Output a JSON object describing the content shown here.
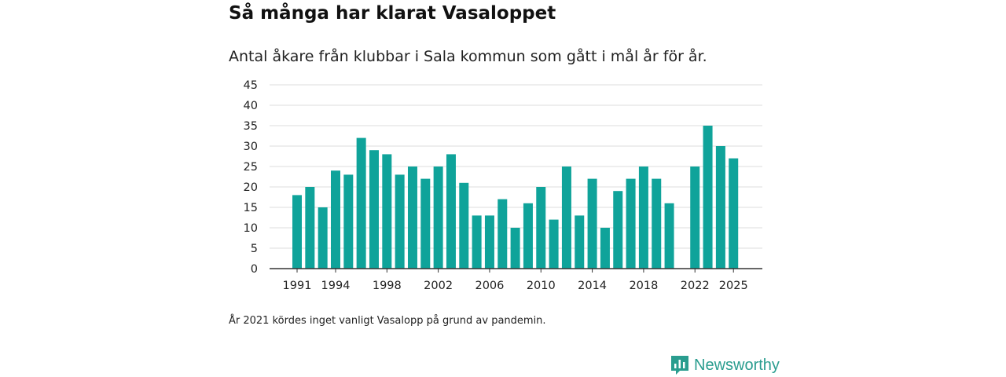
{
  "header": {
    "title": "Så många har klarat Vasaloppet",
    "subtitle": "Antal åkare från klubbar i Sala kommun som gått i mål år för år."
  },
  "footnote": "År 2021 kördes inget vanligt Vasalopp på grund av pandemin.",
  "brand": {
    "name": "Newsworthy",
    "icon": "newsworthy-logo-icon"
  },
  "colors": {
    "bar": "#0fa39a",
    "grid": "#dddddd",
    "axis": "#333333",
    "brand": "#2a9d8f"
  },
  "chart_data": {
    "type": "bar",
    "title": "Så många har klarat Vasaloppet",
    "xlabel": "",
    "ylabel": "",
    "ylim": [
      0,
      45
    ],
    "yticks": [
      0,
      5,
      10,
      15,
      20,
      25,
      30,
      35,
      40,
      45
    ],
    "xtick_labels": [
      "1991",
      "1994",
      "1998",
      "2002",
      "2006",
      "2010",
      "2014",
      "2018",
      "2022",
      "2025"
    ],
    "grid": true,
    "categories": [
      1991,
      1992,
      1993,
      1994,
      1995,
      1996,
      1997,
      1998,
      1999,
      2000,
      2001,
      2002,
      2003,
      2004,
      2005,
      2006,
      2007,
      2008,
      2009,
      2010,
      2011,
      2012,
      2013,
      2014,
      2015,
      2016,
      2017,
      2018,
      2019,
      2020,
      2021,
      2022,
      2023,
      2024,
      2025
    ],
    "values": [
      18,
      20,
      15,
      24,
      23,
      32,
      29,
      28,
      23,
      25,
      22,
      25,
      28,
      21,
      13,
      13,
      17,
      10,
      16,
      20,
      12,
      25,
      13,
      22,
      10,
      19,
      22,
      25,
      22,
      16,
      null,
      25,
      35,
      30,
      27
    ]
  }
}
